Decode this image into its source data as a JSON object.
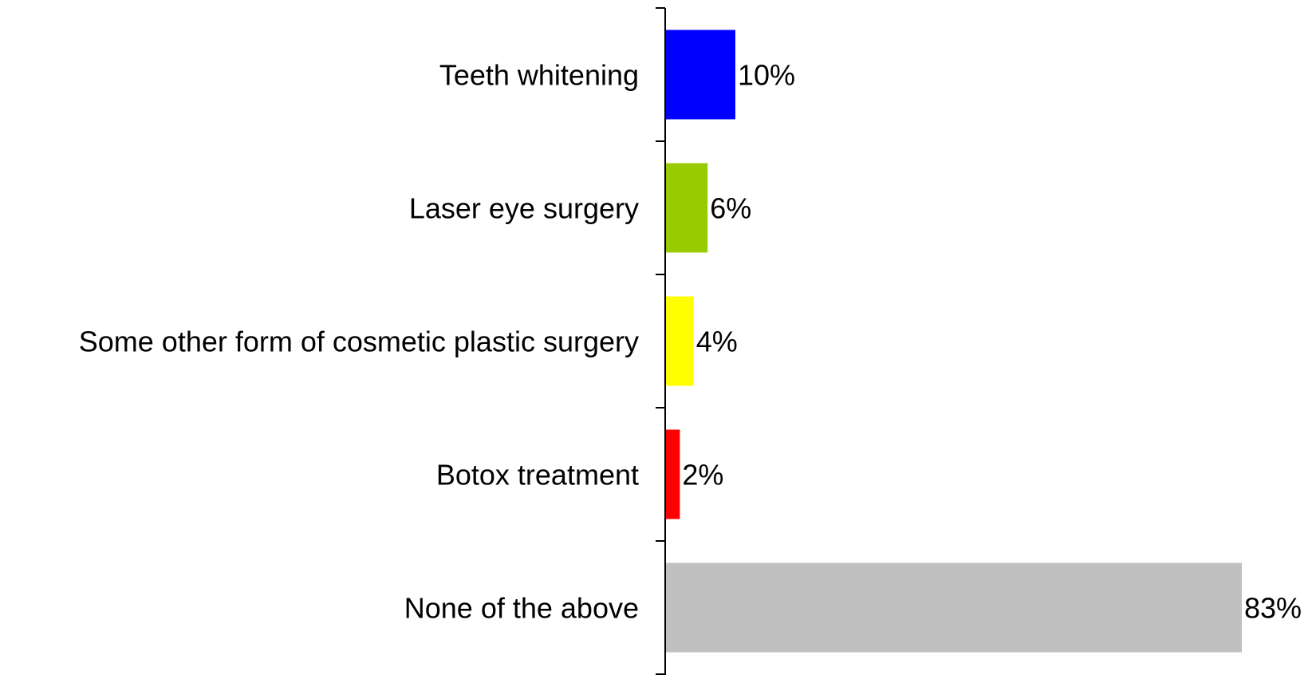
{
  "chart_data": {
    "type": "bar",
    "orientation": "horizontal",
    "categories": [
      "Teeth whitening",
      "Laser eye surgery",
      "Some other form of cosmetic plastic surgery",
      "Botox treatment",
      "None of the above"
    ],
    "values": [
      10,
      6,
      4,
      2,
      83
    ],
    "value_labels": [
      "10%",
      "6%",
      "4%",
      "2%",
      "83%"
    ],
    "colors": [
      "#0000ff",
      "#99cc00",
      "#ffff00",
      "#ff0000",
      "#c0c0c0"
    ],
    "unit": "%",
    "xlim": [
      0,
      83
    ],
    "grid": false,
    "legend": "none",
    "title": "",
    "xlabel": "",
    "ylabel": ""
  }
}
